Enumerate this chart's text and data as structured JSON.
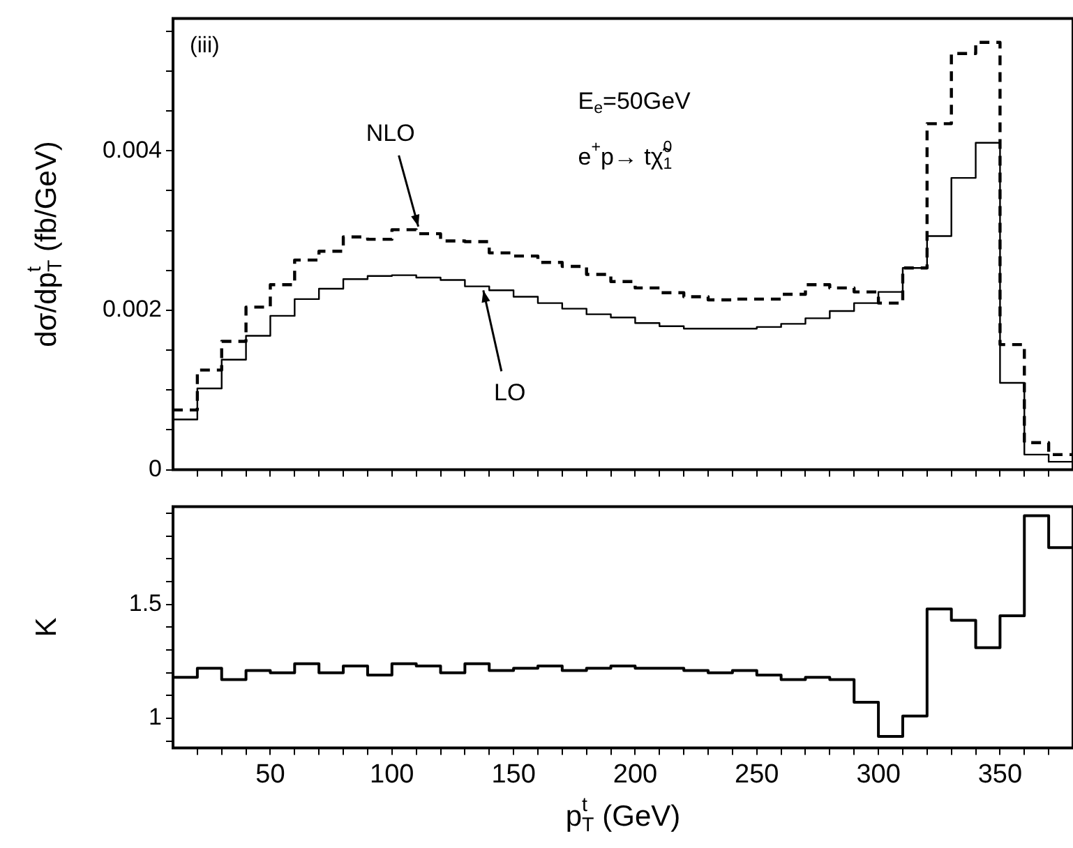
{
  "chart_data": [
    {
      "type": "histogram",
      "ylabel": "dσ/dp$_{T}$$^{t}$ (fb/GeV)",
      "bins": [
        10,
        20,
        30,
        40,
        50,
        60,
        70,
        80,
        90,
        100,
        110,
        120,
        130,
        140,
        150,
        160,
        170,
        180,
        190,
        200,
        210,
        220,
        230,
        240,
        250,
        260,
        270,
        280,
        290,
        300,
        310,
        320,
        330,
        340,
        350,
        360,
        370,
        380
      ],
      "series": [
        {
          "color": "#000000",
          "line_style": "solid",
          "values": [
            0.00063,
            0.00102,
            0.00138,
            0.00168,
            0.00193,
            0.00214,
            0.00227,
            0.00239,
            0.00243,
            0.00244,
            0.00241,
            0.00238,
            0.0023,
            0.00225,
            0.00217,
            0.00209,
            0.00202,
            0.00195,
            0.00191,
            0.00184,
            0.0018,
            0.00177,
            0.00177,
            0.00177,
            0.00179,
            0.00183,
            0.0019,
            0.00199,
            0.00209,
            0.00223,
            0.00253,
            0.00293,
            0.00366,
            0.0041,
            0.00109,
            0.00019,
            0.0001
          ]
        },
        {
          "color": "#000000",
          "line_style": "dashed",
          "values": [
            0.00075,
            0.00125,
            0.00161,
            0.00204,
            0.00232,
            0.00263,
            0.00274,
            0.00292,
            0.00289,
            0.00301,
            0.00296,
            0.00287,
            0.00286,
            0.00272,
            0.00268,
            0.0026,
            0.00255,
            0.00245,
            0.00236,
            0.00228,
            0.00222,
            0.00217,
            0.00213,
            0.00214,
            0.00214,
            0.0022,
            0.00232,
            0.00228,
            0.00223,
            0.00209,
            0.00253,
            0.00434,
            0.00522,
            0.00536,
            0.00157,
            0.00034,
            0.00019
          ]
        }
      ],
      "xlim": [
        10,
        380
      ],
      "xticks": [
        {
          "value": 20,
          "label": null
        },
        {
          "value": 30,
          "label": null
        },
        {
          "value": 40,
          "label": null
        },
        50,
        {
          "value": 60,
          "label": null
        },
        {
          "value": 70,
          "label": null
        },
        {
          "value": 80,
          "label": null
        },
        {
          "value": 90,
          "label": null
        },
        100,
        {
          "value": 110,
          "label": null
        },
        {
          "value": 120,
          "label": null
        },
        {
          "value": 130,
          "label": null
        },
        {
          "value": 140,
          "label": null
        },
        150,
        {
          "value": 160,
          "label": null
        },
        {
          "value": 170,
          "label": null
        },
        {
          "value": 180,
          "label": null
        },
        {
          "value": 190,
          "label": null
        },
        200,
        {
          "value": 210,
          "label": null
        },
        {
          "value": 220,
          "label": null
        },
        {
          "value": 230,
          "label": null
        },
        {
          "value": 240,
          "label": null
        },
        250,
        {
          "value": 260,
          "label": null
        },
        {
          "value": 270,
          "label": null
        },
        {
          "value": 280,
          "label": null
        },
        {
          "value": 290,
          "label": null
        },
        300,
        {
          "value": 310,
          "label": null
        },
        {
          "value": 320,
          "label": null
        },
        {
          "value": 330,
          "label": null
        },
        {
          "value": 340,
          "label": null
        },
        350,
        {
          "value": 360,
          "label": null
        },
        {
          "value": 370,
          "label": null
        }
      ],
      "ylim": [
        0,
        0.00566
      ],
      "yticks": [
        0,
        {
          "value": 0.0005,
          "label": null
        },
        {
          "value": 0.001,
          "label": null
        },
        {
          "value": 0.0015,
          "label": null
        },
        0.002,
        {
          "value": 0.0025,
          "label": null
        },
        {
          "value": 0.003,
          "label": null
        },
        {
          "value": 0.0035,
          "label": null
        },
        0.004,
        {
          "value": 0.0045,
          "label": null
        },
        {
          "value": 0.005,
          "label": null
        },
        {
          "value": 0.0055,
          "label": null
        }
      ],
      "tick_labels": "y",
      "annotations": [
        "(iii)",
        "E$_{e}$=50GeV",
        "e$^{+}$p→ tχ̃$^{0}$$_{1}$",
        {
          "text": "NLO",
          "x": 112,
          "y": 0.00298
        },
        {
          "text": "LO",
          "x": 137,
          "y": 0.00232
        }
      ]
    },
    {
      "type": "histogram",
      "xlabel": "p$_{T}$$^{t}$ (GeV)",
      "ylabel": "K",
      "color": "#000000",
      "bins": [
        10,
        20,
        30,
        40,
        50,
        60,
        70,
        80,
        90,
        100,
        110,
        120,
        130,
        140,
        150,
        160,
        170,
        180,
        190,
        200,
        210,
        220,
        230,
        240,
        250,
        260,
        270,
        280,
        290,
        300,
        310,
        320,
        330,
        340,
        350,
        360,
        370,
        380
      ],
      "values": [
        1.18,
        1.22,
        1.17,
        1.21,
        1.2,
        1.24,
        1.2,
        1.23,
        1.19,
        1.24,
        1.23,
        1.2,
        1.24,
        1.21,
        1.22,
        1.23,
        1.21,
        1.22,
        1.23,
        1.22,
        1.22,
        1.21,
        1.2,
        1.21,
        1.19,
        1.17,
        1.18,
        1.17,
        1.07,
        0.92,
        1.01,
        1.48,
        1.43,
        1.31,
        1.45,
        1.89,
        1.75
      ],
      "xlim": [
        10,
        380
      ],
      "xticks": [
        {
          "value": 20,
          "label": null
        },
        {
          "value": 30,
          "label": null
        },
        {
          "value": 40,
          "label": null
        },
        50,
        {
          "value": 60,
          "label": null
        },
        {
          "value": 70,
          "label": null
        },
        {
          "value": 80,
          "label": null
        },
        {
          "value": 90,
          "label": null
        },
        100,
        {
          "value": 110,
          "label": null
        },
        {
          "value": 120,
          "label": null
        },
        {
          "value": 130,
          "label": null
        },
        {
          "value": 140,
          "label": null
        },
        150,
        {
          "value": 160,
          "label": null
        },
        {
          "value": 170,
          "label": null
        },
        {
          "value": 180,
          "label": null
        },
        {
          "value": 190,
          "label": null
        },
        200,
        {
          "value": 210,
          "label": null
        },
        {
          "value": 220,
          "label": null
        },
        {
          "value": 230,
          "label": null
        },
        {
          "value": 240,
          "label": null
        },
        250,
        {
          "value": 260,
          "label": null
        },
        {
          "value": 270,
          "label": null
        },
        {
          "value": 280,
          "label": null
        },
        {
          "value": 290,
          "label": null
        },
        300,
        {
          "value": 310,
          "label": null
        },
        {
          "value": 320,
          "label": null
        },
        {
          "value": 330,
          "label": null
        },
        {
          "value": 340,
          "label": null
        },
        350,
        {
          "value": 360,
          "label": null
        },
        {
          "value": 370,
          "label": null
        }
      ],
      "ylim": [
        0.87,
        1.93
      ],
      "yticks": [
        {
          "value": 0.9,
          "label": null
        },
        1,
        {
          "value": 1.1,
          "label": null
        },
        {
          "value": 1.2,
          "label": null
        },
        {
          "value": 1.3,
          "label": null
        },
        {
          "value": 1.4,
          "label": null
        },
        1.5,
        {
          "value": 1.6,
          "label": null
        },
        {
          "value": 1.7,
          "label": null
        },
        {
          "value": 1.8,
          "label": null
        },
        {
          "value": 1.9,
          "label": null
        }
      ]
    }
  ]
}
